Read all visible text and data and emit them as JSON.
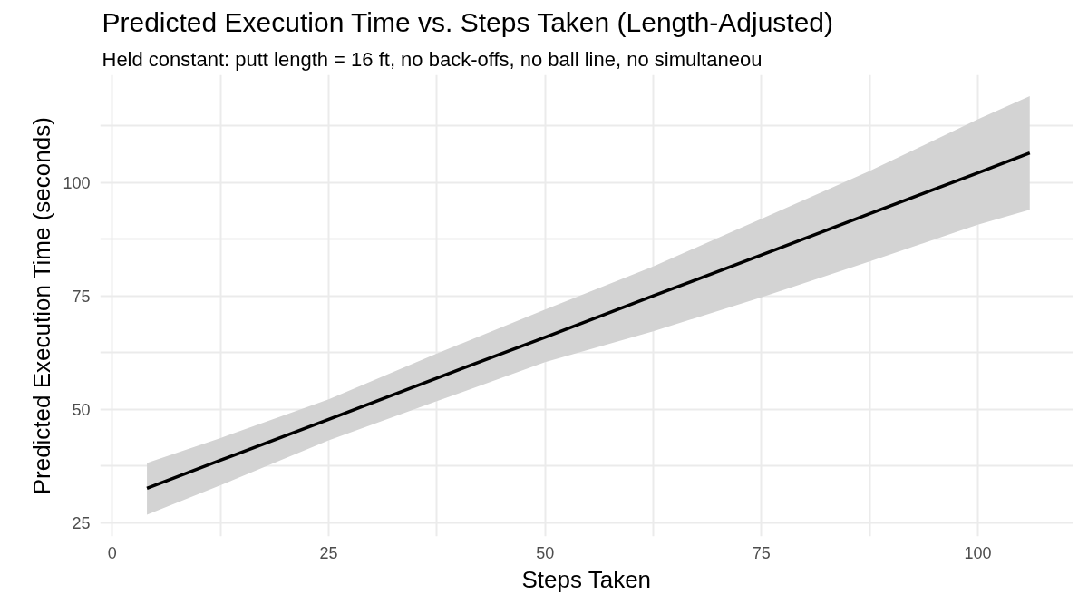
{
  "chart_data": {
    "type": "line",
    "title": "Predicted Execution Time vs. Steps Taken (Length-Adjusted)",
    "subtitle": "Held constant: putt length = 16 ft, no back-offs, no ball line, no simultaneou",
    "xlabel": "Steps Taken",
    "ylabel": "Predicted Execution Time (seconds)",
    "series": [
      {
        "color": "#000000",
        "x": [
          4,
          12.5,
          25,
          37.5,
          50,
          62.5,
          75,
          87.5,
          100,
          106
        ],
        "values": [
          32.6,
          38.8,
          47.8,
          56.9,
          65.9,
          75.0,
          84.0,
          93.1,
          102.1,
          106.5
        ],
        "lower": [
          26.8,
          33.3,
          43.2,
          51.8,
          60.4,
          67.2,
          74.7,
          82.6,
          90.7,
          94.0
        ],
        "upper": [
          38.2,
          43.7,
          52.2,
          62.3,
          72.0,
          81.5,
          92.0,
          102.5,
          113.9,
          119.0
        ]
      }
    ],
    "xlim": [
      -1.4,
      111
    ],
    "ylim": [
      22,
      123.7
    ],
    "xticks": [
      0,
      {
        "value": 12.5,
        "label": null
      },
      25,
      {
        "value": 37.5,
        "label": null
      },
      50,
      {
        "value": 62.5,
        "label": null
      },
      75,
      {
        "value": 87.5,
        "label": null
      },
      100
    ],
    "yticks": [
      25,
      {
        "value": 37.5,
        "label": null
      },
      50,
      {
        "value": 62.5,
        "label": null
      },
      75,
      {
        "value": 87.5,
        "label": null
      },
      100,
      {
        "value": 112.5,
        "label": null
      }
    ],
    "grid": true,
    "marker": "none",
    "line_style": "solid"
  }
}
